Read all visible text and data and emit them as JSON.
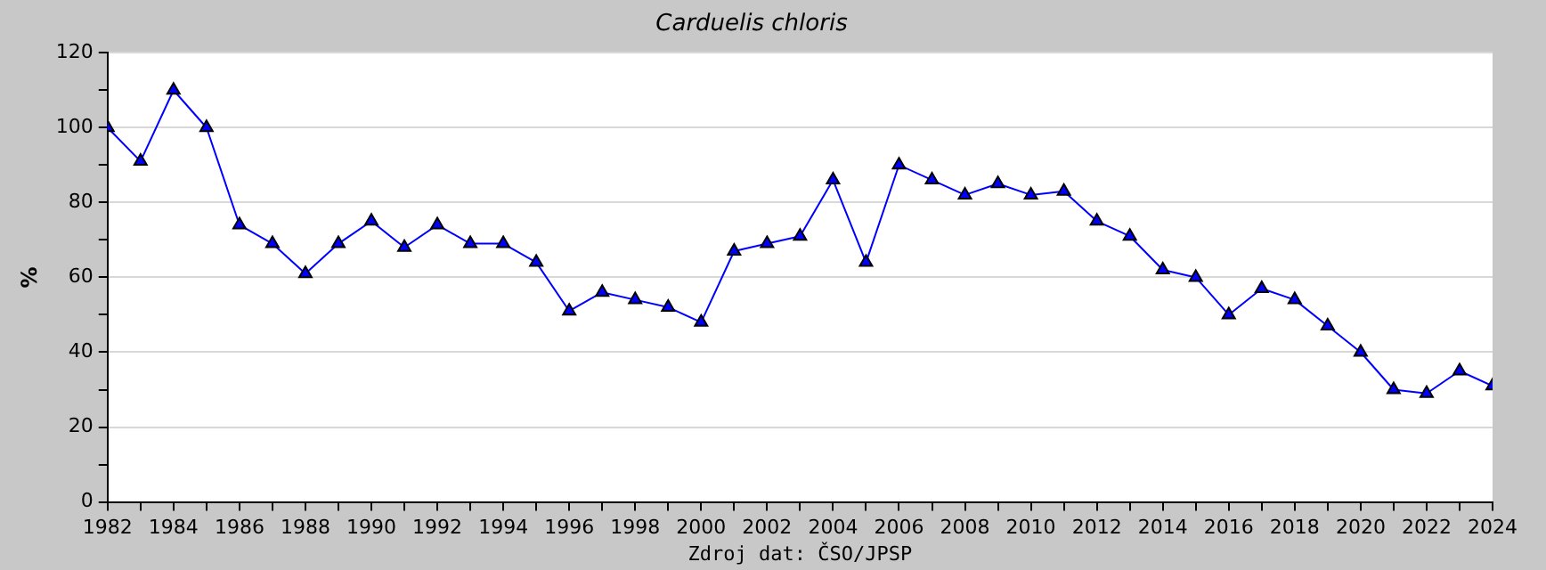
{
  "chart_data": {
    "type": "line",
    "title": "Carduelis chloris",
    "ylabel": "%",
    "annotations": [
      "Zdroj dat: ČSO/JPSP"
    ],
    "x": [
      1982,
      1983,
      1984,
      1985,
      1986,
      1987,
      1988,
      1989,
      1990,
      1991,
      1992,
      1993,
      1994,
      1995,
      1996,
      1997,
      1998,
      1999,
      2000,
      2001,
      2002,
      2003,
      2004,
      2005,
      2006,
      2007,
      2008,
      2009,
      2010,
      2011,
      2012,
      2013,
      2014,
      2015,
      2016,
      2017,
      2018,
      2019,
      2020,
      2021,
      2022,
      2023,
      2024
    ],
    "series": [
      {
        "color": "#0000ff",
        "values": [
          100,
          91,
          110,
          100,
          74,
          69,
          61,
          69,
          75,
          68,
          74,
          69,
          69,
          64,
          51,
          56,
          54,
          52,
          48,
          67,
          69,
          71,
          86,
          64,
          90,
          86,
          82,
          85,
          82,
          83,
          75,
          71,
          62,
          60,
          50,
          57,
          54,
          47,
          40,
          30,
          29,
          35,
          31
        ]
      }
    ],
    "xlim": [
      1982,
      2024
    ],
    "xticks": [
      1982,
      {
        "value": 1983,
        "label": null
      },
      1984,
      {
        "value": 1985,
        "label": null
      },
      1986,
      {
        "value": 1987,
        "label": null
      },
      1988,
      {
        "value": 1989,
        "label": null
      },
      1990,
      {
        "value": 1991,
        "label": null
      },
      1992,
      {
        "value": 1993,
        "label": null
      },
      1994,
      {
        "value": 1995,
        "label": null
      },
      1996,
      {
        "value": 1997,
        "label": null
      },
      1998,
      {
        "value": 1999,
        "label": null
      },
      2000,
      {
        "value": 2001,
        "label": null
      },
      2002,
      {
        "value": 2003,
        "label": null
      },
      2004,
      {
        "value": 2005,
        "label": null
      },
      2006,
      {
        "value": 2007,
        "label": null
      },
      2008,
      {
        "value": 2009,
        "label": null
      },
      2010,
      {
        "value": 2011,
        "label": null
      },
      2012,
      {
        "value": 2013,
        "label": null
      },
      2014,
      {
        "value": 2015,
        "label": null
      },
      2016,
      {
        "value": 2017,
        "label": null
      },
      2018,
      {
        "value": 2019,
        "label": null
      },
      2020,
      {
        "value": 2021,
        "label": null
      },
      2022,
      {
        "value": 2023,
        "label": null
      },
      2024
    ],
    "ylim": [
      0,
      120
    ],
    "yticks": [
      0,
      {
        "value": 10,
        "label": null
      },
      20,
      {
        "value": 30,
        "label": null
      },
      40,
      {
        "value": 50,
        "label": null
      },
      60,
      {
        "value": 70,
        "label": null
      },
      80,
      {
        "value": 90,
        "label": null
      },
      100,
      {
        "value": 110,
        "label": null
      },
      120
    ],
    "grid": "y",
    "marker": "triangle",
    "line_style": "solid",
    "legend": false
  }
}
